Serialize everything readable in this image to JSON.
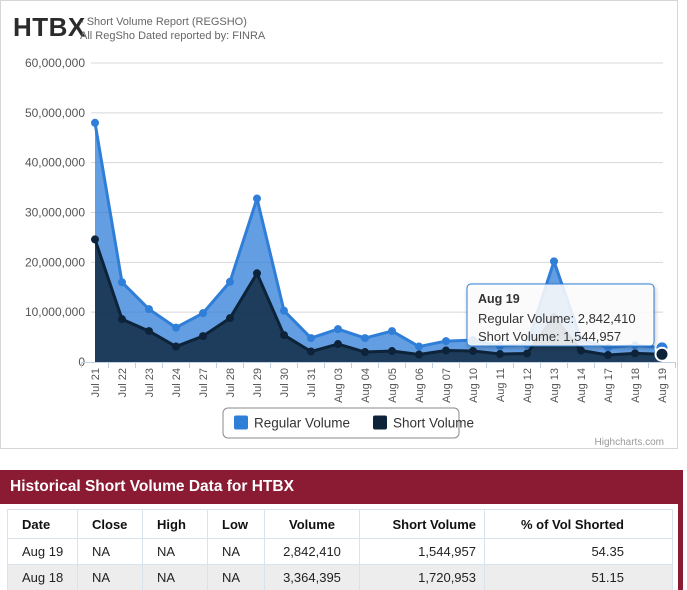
{
  "header": {
    "symbol": "HTBX",
    "subtitle_line1": "- Short Volume Report  (REGSHO)",
    "subtitle_line2": "All RegSho Dated reported by: FINRA"
  },
  "chart_data": {
    "type": "area",
    "title": "",
    "categories": [
      "Jul 21",
      "Jul 22",
      "Jul 23",
      "Jul 24",
      "Jul 27",
      "Jul 28",
      "Jul 29",
      "Jul 30",
      "Jul 31",
      "Aug 03",
      "Aug 04",
      "Aug 05",
      "Aug 06",
      "Aug 07",
      "Aug 10",
      "Aug 11",
      "Aug 12",
      "Aug 13",
      "Aug 14",
      "Aug 17",
      "Aug 18",
      "Aug 19"
    ],
    "series": [
      {
        "name": "Regular Volume",
        "color": "#2f7ed8",
        "values": [
          48000000,
          16000000,
          10600000,
          6900000,
          9800000,
          16100000,
          32800000,
          10300000,
          4800000,
          6600000,
          4800000,
          6200000,
          3100000,
          4200000,
          4400000,
          3200000,
          3500000,
          20200000,
          4500000,
          2900000,
          3364395,
          2842410
        ]
      },
      {
        "name": "Short Volume",
        "color": "#0d233a",
        "values": [
          24600000,
          8600000,
          6200000,
          3100000,
          5200000,
          8800000,
          17800000,
          5400000,
          2100000,
          3600000,
          2000000,
          2200000,
          1500000,
          2300000,
          2200000,
          1600000,
          1700000,
          9000000,
          2300000,
          1400000,
          1720953,
          1544957
        ]
      }
    ],
    "xlabel": "",
    "ylabel": "",
    "ylim": [
      0,
      60000000
    ],
    "ytick_interval": 10000000,
    "grid": true,
    "legend_position": "bottom-center",
    "hover_point_index": 21,
    "tooltip": {
      "title": "Aug 19",
      "lines": [
        {
          "label": "Regular Volume",
          "value": "2,842,410"
        },
        {
          "label": "Short Volume",
          "value": "1,544,957"
        }
      ]
    },
    "credit": "Highcharts.com"
  },
  "table": {
    "title": "Historical Short Volume Data for HTBX",
    "accent_color": "#8b1a33",
    "columns": [
      "Date",
      "Close",
      "High",
      "Low",
      "Volume",
      "Short Volume",
      "% of Vol Shorted"
    ],
    "rows": [
      [
        "Aug 19",
        "NA",
        "NA",
        "NA",
        "2,842,410",
        "1,544,957",
        "54.35"
      ],
      [
        "Aug 18",
        "NA",
        "NA",
        "NA",
        "3,364,395",
        "1,720,953",
        "51.15"
      ]
    ]
  }
}
